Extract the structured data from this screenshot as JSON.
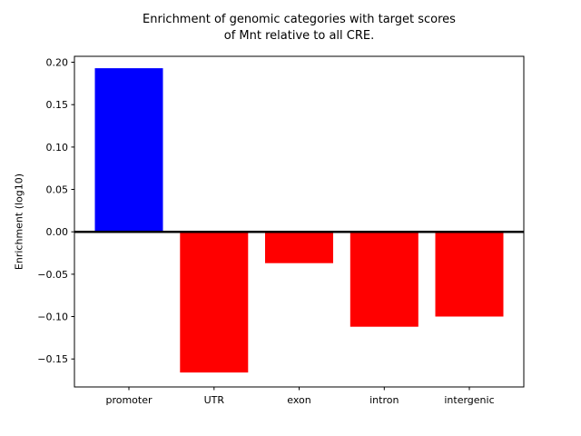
{
  "chart_data": {
    "type": "bar",
    "title": "Enrichment of genomic categories with target scores\nof Mnt relative to all CRE.",
    "ylabel": "Enrichment (log10)",
    "xlabel": "",
    "categories": [
      "promoter",
      "UTR",
      "exon",
      "intron",
      "intergenic"
    ],
    "values": [
      0.193,
      -0.166,
      -0.037,
      -0.112,
      -0.1
    ],
    "bar_colors": [
      "#0000ff",
      "#ff0000",
      "#ff0000",
      "#ff0000",
      "#ff0000"
    ],
    "positive_color": "#0000ff",
    "negative_color": "#ff0000",
    "axis_color": "#000000",
    "background_color": "#ffffff",
    "ylim": [
      -0.183,
      0.207
    ],
    "yticks": {
      "values": [
        0.2,
        0.15,
        0.1,
        0.05,
        0.0,
        -0.05,
        -0.1,
        -0.15
      ],
      "labels": [
        "0.20",
        "0.15",
        "0.10",
        "0.05",
        "0.00",
        "−0.05",
        "−0.10",
        "−0.15"
      ]
    },
    "zero_line": true,
    "grid": false,
    "legend": null,
    "bar_width_ratio": 0.8
  }
}
